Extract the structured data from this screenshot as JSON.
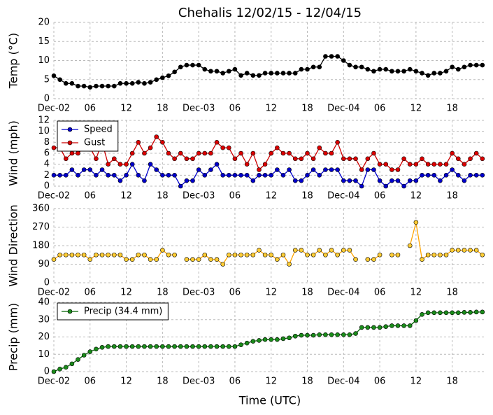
{
  "chart_data": [
    {
      "type": "line",
      "title": "Chehalis 12/02/15 - 12/04/15",
      "ylabel": "Temp (°C)",
      "x": [
        0,
        1,
        2,
        3,
        4,
        5,
        6,
        7,
        8,
        9,
        10,
        11,
        12,
        13,
        14,
        15,
        16,
        17,
        18,
        19,
        20,
        21,
        22,
        23,
        24,
        25,
        26,
        27,
        28,
        29,
        30,
        31,
        32,
        33,
        34,
        35,
        36,
        37,
        38,
        39,
        40,
        41,
        42,
        43,
        44,
        45,
        46,
        47,
        48,
        49,
        50,
        51,
        52,
        53,
        54,
        55,
        56,
        57,
        58,
        59,
        60,
        61,
        62,
        63,
        64,
        65,
        66,
        67,
        68,
        69,
        70,
        71
      ],
      "xlim": [
        0,
        71.6
      ],
      "xticks": [
        {
          "value": 0,
          "label": "Dec-02"
        },
        {
          "value": 6,
          "label": "06"
        },
        {
          "value": 12,
          "label": "12"
        },
        {
          "value": 18,
          "label": "18"
        },
        {
          "value": 24,
          "label": "Dec-03"
        },
        {
          "value": 30,
          "label": "06"
        },
        {
          "value": 36,
          "label": "12"
        },
        {
          "value": 42,
          "label": "18"
        },
        {
          "value": 48,
          "label": "Dec-04"
        },
        {
          "value": 54,
          "label": "06"
        },
        {
          "value": 60,
          "label": "12"
        },
        {
          "value": 66,
          "label": "18"
        }
      ],
      "ylim": [
        0,
        20
      ],
      "yticks": [
        0,
        5,
        10,
        15,
        20
      ],
      "grid": true,
      "series": [
        {
          "color": "#000000",
          "marker_color": "#000000",
          "values": [
            6,
            5,
            4,
            4,
            3.3,
            3.3,
            3,
            3.3,
            3.3,
            3.3,
            3.3,
            4,
            4,
            4,
            4.3,
            4,
            4.3,
            5,
            5.5,
            6,
            7,
            8.3,
            8.8,
            8.8,
            8.8,
            7.7,
            7.2,
            7.2,
            6.7,
            7.2,
            7.7,
            6.1,
            6.7,
            6.1,
            6.1,
            6.7,
            6.7,
            6.7,
            6.7,
            6.7,
            6.7,
            7.7,
            7.7,
            8.3,
            8.3,
            11.1,
            11.1,
            11.1,
            10,
            8.8,
            8.3,
            8.3,
            7.7,
            7.2,
            7.7,
            7.7,
            7.2,
            7.2,
            7.2,
            7.7,
            7.2,
            6.7,
            6.1,
            6.7,
            6.7,
            7.2,
            8.3,
            7.7,
            8.3,
            8.8,
            8.8,
            8.8
          ]
        }
      ]
    },
    {
      "type": "line",
      "ylabel": "Wind (mph)",
      "x": [
        0,
        1,
        2,
        3,
        4,
        5,
        6,
        7,
        8,
        9,
        10,
        11,
        12,
        13,
        14,
        15,
        16,
        17,
        18,
        19,
        20,
        21,
        22,
        23,
        24,
        25,
        26,
        27,
        28,
        29,
        30,
        31,
        32,
        33,
        34,
        35,
        36,
        37,
        38,
        39,
        40,
        41,
        42,
        43,
        44,
        45,
        46,
        47,
        48,
        49,
        50,
        51,
        52,
        53,
        54,
        55,
        56,
        57,
        58,
        59,
        60,
        61,
        62,
        63,
        64,
        65,
        66,
        67,
        68,
        69,
        70,
        71
      ],
      "xlim": [
        0,
        71.6
      ],
      "xticks": [
        {
          "value": 0,
          "label": "Dec-02"
        },
        {
          "value": 6,
          "label": "06"
        },
        {
          "value": 12,
          "label": "12"
        },
        {
          "value": 18,
          "label": "18"
        },
        {
          "value": 24,
          "label": "Dec-03"
        },
        {
          "value": 30,
          "label": "06"
        },
        {
          "value": 36,
          "label": "12"
        },
        {
          "value": 42,
          "label": "18"
        },
        {
          "value": 48,
          "label": "Dec-04"
        },
        {
          "value": 54,
          "label": "06"
        },
        {
          "value": 60,
          "label": "12"
        },
        {
          "value": 66,
          "label": "18"
        }
      ],
      "ylim": [
        0,
        12
      ],
      "yticks": [
        0,
        2,
        4,
        6,
        8,
        10,
        12
      ],
      "grid": true,
      "legend": "upper left",
      "series": [
        {
          "name": "Speed",
          "color": "#0000cc",
          "marker_color": "#0000cc",
          "values": [
            2,
            2,
            2,
            3,
            2,
            3,
            3,
            2,
            3,
            2,
            2,
            1,
            2,
            4,
            2,
            1,
            4,
            3,
            2,
            2,
            2,
            0,
            1,
            1,
            3,
            2,
            3,
            4,
            2,
            2,
            2,
            2,
            2,
            1,
            2,
            2,
            2,
            3,
            2,
            3,
            1,
            1,
            2,
            3,
            2,
            3,
            3,
            3,
            1,
            1,
            1,
            0,
            3,
            3,
            1,
            0,
            1,
            1,
            0,
            1,
            1,
            2,
            2,
            2,
            1,
            2,
            3,
            2,
            1,
            2,
            2,
            2
          ]
        },
        {
          "name": "Gust",
          "color": "#cc0000",
          "marker_color": "#dd0000",
          "values": [
            7,
            7,
            5,
            6,
            6,
            7,
            7,
            5,
            8,
            4,
            5,
            4,
            4,
            6,
            8,
            6,
            7,
            9,
            8,
            6,
            5,
            6,
            5,
            5,
            6,
            6,
            6,
            8,
            7,
            7,
            5,
            6,
            4,
            6,
            3,
            4,
            6,
            7,
            6,
            6,
            5,
            5,
            6,
            5,
            7,
            6,
            6,
            8,
            5,
            5,
            5,
            3,
            5,
            6,
            4,
            4,
            3,
            3,
            5,
            4,
            4,
            5,
            4,
            4,
            4,
            4,
            6,
            5,
            4,
            5,
            6,
            5
          ]
        }
      ]
    },
    {
      "type": "line",
      "ylabel": "Wind Direction",
      "x": [
        0,
        1,
        2,
        3,
        4,
        5,
        6,
        7,
        8,
        9,
        10,
        11,
        12,
        13,
        14,
        15,
        16,
        17,
        18,
        19,
        20,
        21,
        22,
        23,
        24,
        25,
        26,
        27,
        28,
        29,
        30,
        31,
        32,
        33,
        34,
        35,
        36,
        37,
        38,
        39,
        40,
        41,
        42,
        43,
        44,
        45,
        46,
        47,
        48,
        49,
        50,
        51,
        52,
        53,
        54,
        55,
        56,
        57,
        58,
        59,
        60,
        61,
        62,
        63,
        64,
        65,
        66,
        67,
        68,
        69,
        70,
        71
      ],
      "xlim": [
        0,
        71.6
      ],
      "xticks": [
        {
          "value": 0,
          "label": "Dec-02"
        },
        {
          "value": 6,
          "label": "06"
        },
        {
          "value": 12,
          "label": "12"
        },
        {
          "value": 18,
          "label": "18"
        },
        {
          "value": 24,
          "label": "Dec-03"
        },
        {
          "value": 30,
          "label": "06"
        },
        {
          "value": 36,
          "label": "12"
        },
        {
          "value": 42,
          "label": "18"
        },
        {
          "value": 48,
          "label": "Dec-04"
        },
        {
          "value": 54,
          "label": "06"
        },
        {
          "value": 60,
          "label": "12"
        },
        {
          "value": 66,
          "label": "18"
        }
      ],
      "ylim": [
        0,
        360
      ],
      "yticks": [
        0,
        90,
        180,
        270,
        360
      ],
      "grid": true,
      "series": [
        {
          "color": "#ffa500",
          "marker_color": "#ffcc33",
          "values": [
            113,
            135,
            135,
            135,
            135,
            135,
            113,
            135,
            135,
            135,
            135,
            135,
            113,
            113,
            135,
            135,
            113,
            113,
            158,
            135,
            135,
            null,
            113,
            113,
            113,
            135,
            113,
            113,
            90,
            135,
            135,
            135,
            135,
            135,
            158,
            135,
            135,
            113,
            135,
            90,
            158,
            158,
            135,
            135,
            158,
            135,
            158,
            135,
            158,
            158,
            113,
            null,
            113,
            113,
            135,
            null,
            135,
            135,
            null,
            180,
            293,
            113,
            135,
            135,
            135,
            135,
            158,
            158,
            158,
            158,
            158,
            135
          ]
        }
      ]
    },
    {
      "type": "line",
      "ylabel": "Precip (mm)",
      "xlabel": "Time (UTC)",
      "x": [
        0,
        1,
        2,
        3,
        4,
        5,
        6,
        7,
        8,
        9,
        10,
        11,
        12,
        13,
        14,
        15,
        16,
        17,
        18,
        19,
        20,
        21,
        22,
        23,
        24,
        25,
        26,
        27,
        28,
        29,
        30,
        31,
        32,
        33,
        34,
        35,
        36,
        37,
        38,
        39,
        40,
        41,
        42,
        43,
        44,
        45,
        46,
        47,
        48,
        49,
        50,
        51,
        52,
        53,
        54,
        55,
        56,
        57,
        58,
        59,
        60,
        61,
        62,
        63,
        64,
        65,
        66,
        67,
        68,
        69,
        70,
        71
      ],
      "xlim": [
        0,
        71.6
      ],
      "xticks": [
        {
          "value": 0,
          "label": "Dec-02"
        },
        {
          "value": 6,
          "label": "06"
        },
        {
          "value": 12,
          "label": "12"
        },
        {
          "value": 18,
          "label": "18"
        },
        {
          "value": 24,
          "label": "Dec-03"
        },
        {
          "value": 30,
          "label": "06"
        },
        {
          "value": 36,
          "label": "12"
        },
        {
          "value": 42,
          "label": "18"
        },
        {
          "value": 48,
          "label": "Dec-04"
        },
        {
          "value": 54,
          "label": "06"
        },
        {
          "value": 60,
          "label": "12"
        },
        {
          "value": 66,
          "label": "18"
        }
      ],
      "ylim": [
        0,
        40
      ],
      "yticks": [
        0,
        10,
        20,
        30,
        40
      ],
      "grid": true,
      "legend": "upper left",
      "series": [
        {
          "name": "Precip (34.4 mm)",
          "color": "#006400",
          "marker_color": "#1a8c1a",
          "values": [
            0,
            1.5,
            2.5,
            4.5,
            7,
            9.5,
            11.5,
            13,
            14,
            14.5,
            14.5,
            14.5,
            14.5,
            14.5,
            14.5,
            14.5,
            14.5,
            14.5,
            14.5,
            14.5,
            14.5,
            14.5,
            14.5,
            14.5,
            14.5,
            14.5,
            14.5,
            14.5,
            14.5,
            14.5,
            14.5,
            15.5,
            16.5,
            17.5,
            18,
            18.5,
            18.5,
            18.5,
            19,
            19.5,
            20.5,
            21,
            21,
            21,
            21.3,
            21.3,
            21.3,
            21.3,
            21.3,
            21.3,
            22,
            25.5,
            25.5,
            25.5,
            25.5,
            26,
            26.5,
            26.5,
            26.5,
            26.5,
            29.5,
            33,
            34,
            34,
            34,
            34,
            34,
            34,
            34.2,
            34.2,
            34.4,
            34.4
          ]
        }
      ]
    }
  ]
}
